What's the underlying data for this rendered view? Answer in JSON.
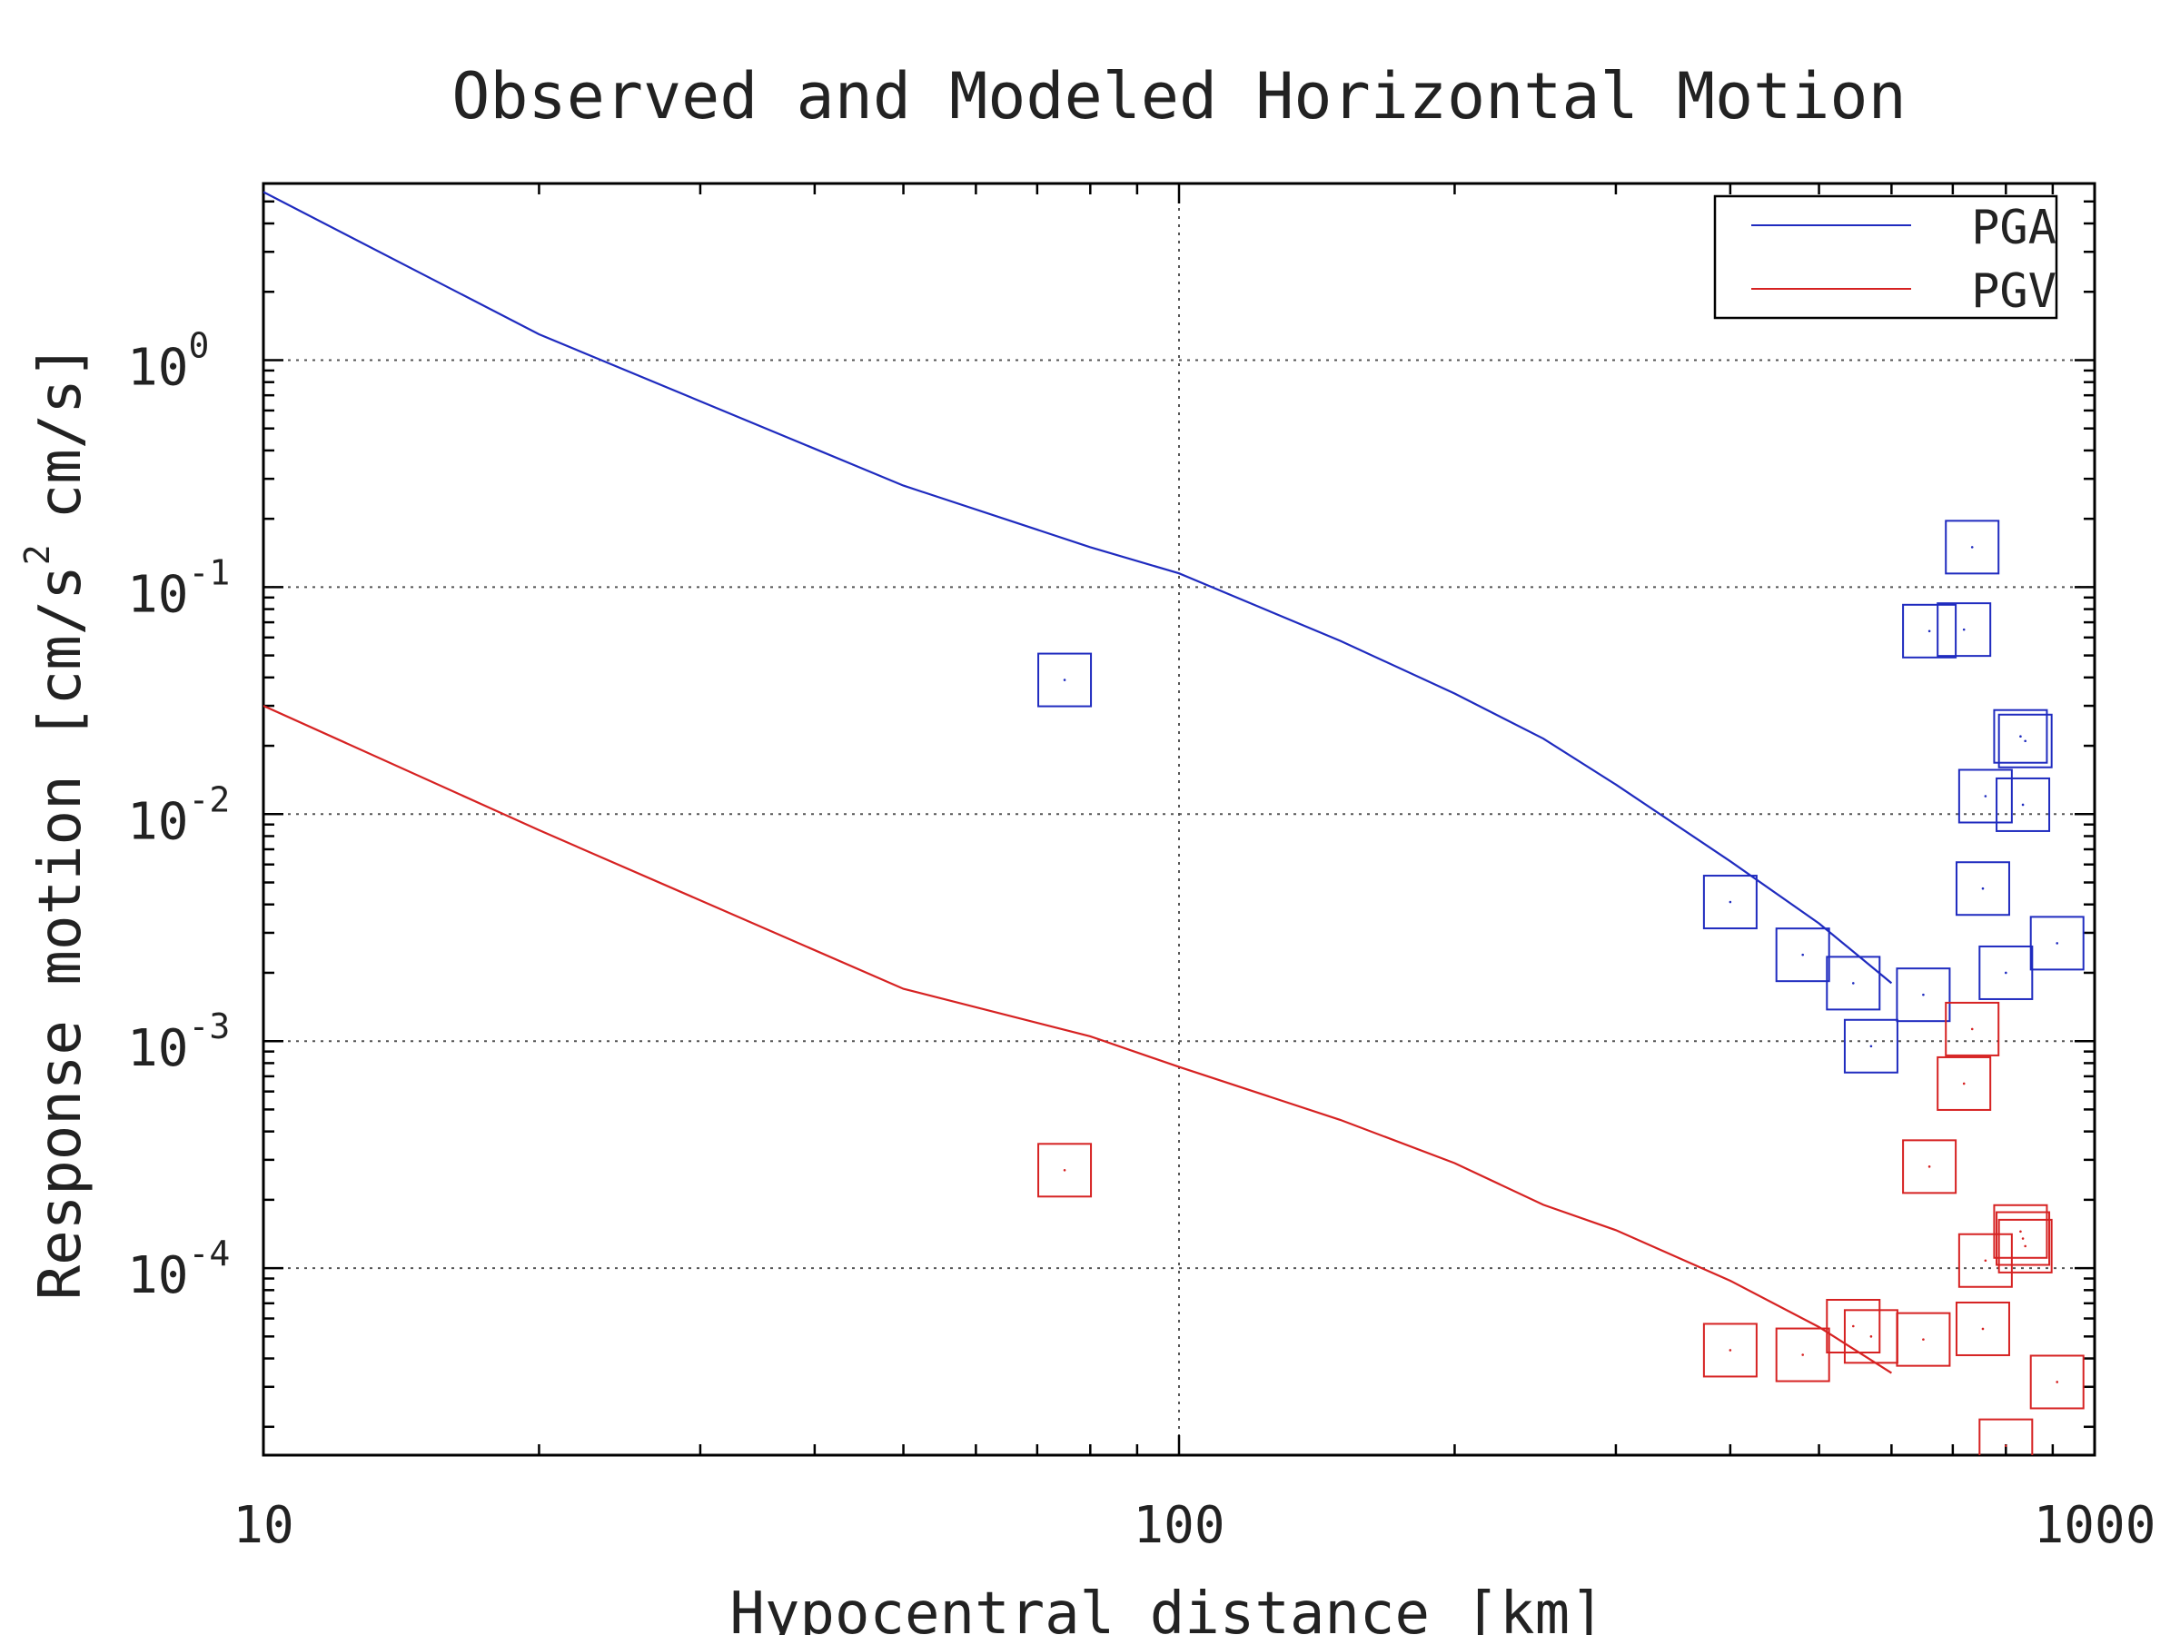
{
  "chart_data": {
    "type": "scatter",
    "title": "Observed and Modeled Horizontal Motion",
    "xlabel": "Hypocentral distance [km]",
    "ylabel": "Response motion [cm/s",
    "ylabel_unit_exponent": "2",
    "ylabel_suffix": "cm/s]",
    "x_scale": "log",
    "y_scale": "log",
    "xlim": [
      10,
      1000
    ],
    "ylim": [
      1.5e-05,
      6
    ],
    "grid": true,
    "legend_placement": "top-right",
    "x_ticks": [
      {
        "value": 10,
        "label": "10"
      },
      {
        "value": 100,
        "label": "100"
      },
      {
        "value": 1000,
        "label": "1000"
      }
    ],
    "y_ticks": [
      {
        "value": 1,
        "base": "10",
        "exp": "0"
      },
      {
        "value": 0.1,
        "base": "10",
        "exp": "-1"
      },
      {
        "value": 0.01,
        "base": "10",
        "exp": "-2"
      },
      {
        "value": 0.001,
        "base": "10",
        "exp": "-3"
      },
      {
        "value": 0.0001,
        "base": "10",
        "exp": "-4"
      }
    ],
    "series": [
      {
        "name": "PGA",
        "color": "#1f2bbf",
        "line": [
          [
            10,
            5.5
          ],
          [
            20,
            1.3
          ],
          [
            50,
            0.28
          ],
          [
            80,
            0.15
          ],
          [
            100,
            0.115
          ],
          [
            150,
            0.058
          ],
          [
            200,
            0.034
          ],
          [
            250,
            0.0215
          ],
          [
            300,
            0.0135
          ],
          [
            400,
            0.0062
          ],
          [
            500,
            0.0033
          ],
          [
            600,
            0.0018
          ]
        ],
        "points": [
          [
            75,
            0.039
          ],
          [
            400,
            0.0041
          ],
          [
            480,
            0.0024
          ],
          [
            545,
            0.0018
          ],
          [
            570,
            0.00095
          ],
          [
            650,
            0.0016
          ],
          [
            660,
            0.064
          ],
          [
            720,
            0.065
          ],
          [
            735,
            0.15
          ],
          [
            755,
            0.0047
          ],
          [
            760,
            0.012
          ],
          [
            800,
            0.002
          ],
          [
            830,
            0.022
          ],
          [
            835,
            0.011
          ],
          [
            840,
            0.021
          ],
          [
            910,
            0.0027
          ]
        ]
      },
      {
        "name": "PGV",
        "color": "#d62222",
        "line": [
          [
            10,
            0.03
          ],
          [
            20,
            0.0085
          ],
          [
            50,
            0.0017
          ],
          [
            80,
            0.00105
          ],
          [
            100,
            0.00077
          ],
          [
            150,
            0.00045
          ],
          [
            200,
            0.00029
          ],
          [
            250,
            0.00019
          ],
          [
            300,
            0.000147
          ],
          [
            400,
            8.8e-05
          ],
          [
            500,
            5.5e-05
          ],
          [
            600,
            3.45e-05
          ]
        ],
        "points": [
          [
            75,
            0.00027
          ],
          [
            400,
            4.35e-05
          ],
          [
            480,
            4.15e-05
          ],
          [
            545,
            5.55e-05
          ],
          [
            570,
            5e-05
          ],
          [
            650,
            4.85e-05
          ],
          [
            660,
            0.00028
          ],
          [
            720,
            0.00065
          ],
          [
            735,
            0.00113
          ],
          [
            755,
            5.4e-05
          ],
          [
            760,
            0.000108
          ],
          [
            800,
            1.65e-05
          ],
          [
            830,
            0.000145
          ],
          [
            835,
            0.000135
          ],
          [
            840,
            0.000125
          ],
          [
            910,
            3.15e-05
          ]
        ]
      }
    ]
  }
}
